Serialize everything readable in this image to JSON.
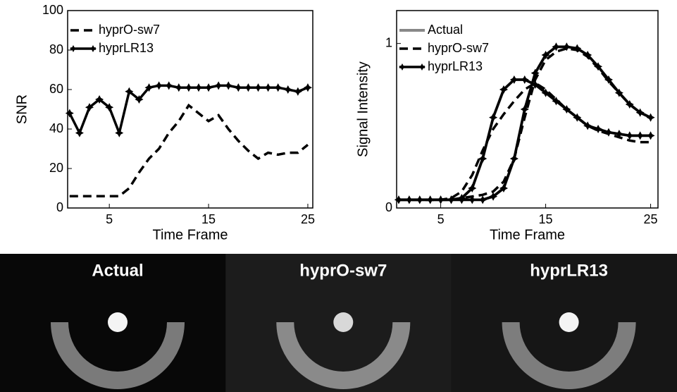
{
  "chart_data": [
    {
      "type": "line",
      "ylabel": "SNR",
      "xlabel": "Time Frame",
      "x": [
        1,
        2,
        3,
        4,
        5,
        6,
        7,
        8,
        9,
        10,
        11,
        12,
        13,
        14,
        15,
        16,
        17,
        18,
        19,
        20,
        21,
        22,
        23,
        24,
        25
      ],
      "xlim": [
        0.8,
        25.5
      ],
      "xticks": [
        5,
        15,
        25
      ],
      "ylim": [
        0,
        100
      ],
      "yticks": [
        0,
        20,
        40,
        60,
        80,
        100
      ],
      "legend": "upper left",
      "series": [
        {
          "name": "hyprO-sw7",
          "color": "#000000",
          "style": "dashed",
          "values": [
            6,
            6,
            6,
            6,
            6,
            6,
            10,
            18,
            25,
            30,
            38,
            44,
            52,
            48,
            44,
            47,
            40,
            34,
            29,
            25,
            28,
            27,
            28,
            28,
            32
          ]
        },
        {
          "name": "hyprLR13",
          "color": "#000000",
          "style": "solid",
          "marker": "star",
          "values": [
            48,
            38,
            51,
            55,
            51,
            38,
            59,
            55,
            61,
            62,
            62,
            61,
            61,
            61,
            61,
            62,
            62,
            61,
            61,
            61,
            61,
            61,
            60,
            59,
            61
          ]
        }
      ]
    },
    {
      "type": "line",
      "ylabel": "Signal Intensity",
      "xlabel": "Time Frame",
      "x": [
        1,
        2,
        3,
        4,
        5,
        6,
        7,
        8,
        9,
        10,
        11,
        12,
        13,
        14,
        15,
        16,
        17,
        18,
        19,
        20,
        21,
        22,
        23,
        24,
        25
      ],
      "xlim": [
        0.8,
        25.7
      ],
      "xticks": [
        5,
        15,
        25
      ],
      "ylim": [
        0,
        1.2
      ],
      "yticks": [
        0,
        1
      ],
      "legend": "upper left",
      "series": [
        {
          "name": "Actual",
          "color": "#888888",
          "style": "solid",
          "curves": [
            [
              0.05,
              0.05,
              0.05,
              0.05,
              0.05,
              0.05,
              0.06,
              0.12,
              0.3,
              0.55,
              0.72,
              0.78,
              0.78,
              0.75,
              0.7,
              0.65,
              0.6,
              0.55,
              0.5,
              0.48,
              0.46,
              0.45,
              0.44,
              0.44,
              0.44
            ],
            [
              0.05,
              0.05,
              0.05,
              0.05,
              0.05,
              0.05,
              0.05,
              0.05,
              0.05,
              0.07,
              0.12,
              0.3,
              0.6,
              0.82,
              0.93,
              0.98,
              0.98,
              0.97,
              0.93,
              0.86,
              0.78,
              0.7,
              0.63,
              0.58,
              0.55
            ]
          ]
        },
        {
          "name": "hyprO-sw7",
          "color": "#000000",
          "style": "dashed",
          "curves": [
            [
              0.05,
              0.05,
              0.05,
              0.05,
              0.05,
              0.06,
              0.1,
              0.2,
              0.35,
              0.48,
              0.57,
              0.65,
              0.72,
              0.76,
              0.72,
              0.66,
              0.6,
              0.55,
              0.5,
              0.47,
              0.45,
              0.43,
              0.41,
              0.4,
              0.4
            ],
            [
              0.05,
              0.05,
              0.05,
              0.05,
              0.05,
              0.05,
              0.06,
              0.07,
              0.08,
              0.1,
              0.16,
              0.3,
              0.55,
              0.78,
              0.9,
              0.95,
              0.97,
              0.96,
              0.92,
              0.85,
              0.77,
              0.7,
              0.63,
              0.58,
              0.55
            ]
          ]
        },
        {
          "name": "hyprLR13",
          "color": "#000000",
          "style": "solid",
          "marker": "star",
          "curves": [
            [
              0.05,
              0.05,
              0.05,
              0.05,
              0.05,
              0.05,
              0.06,
              0.12,
              0.3,
              0.55,
              0.72,
              0.78,
              0.78,
              0.75,
              0.7,
              0.65,
              0.6,
              0.55,
              0.5,
              0.48,
              0.46,
              0.45,
              0.44,
              0.44,
              0.44
            ],
            [
              0.05,
              0.05,
              0.05,
              0.05,
              0.05,
              0.05,
              0.05,
              0.05,
              0.05,
              0.07,
              0.12,
              0.3,
              0.6,
              0.82,
              0.93,
              0.98,
              0.98,
              0.97,
              0.93,
              0.86,
              0.78,
              0.7,
              0.63,
              0.58,
              0.55
            ]
          ]
        }
      ]
    }
  ],
  "image_panels": {
    "titles": [
      "Actual",
      "hyprO-sw7",
      "hyprLR13"
    ]
  }
}
